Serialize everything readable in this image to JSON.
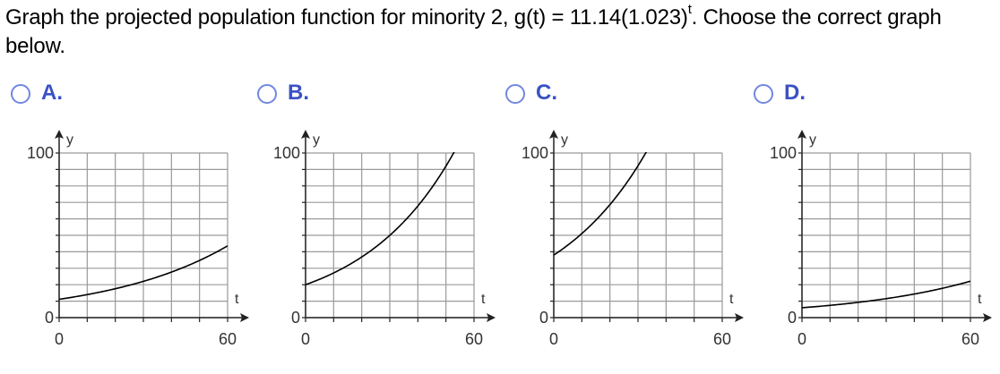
{
  "question": {
    "prefix": "Graph the projected population function for minority 2, g(t) = 11.14(1.023)",
    "exponent": "t",
    "suffix": ". Choose the correct graph below."
  },
  "options": [
    {
      "letter": "A.",
      "series": {
        "a": 11.14,
        "b": 1.023
      }
    },
    {
      "letter": "B.",
      "series": {
        "a": 20,
        "b": 1.031
      }
    },
    {
      "letter": "C.",
      "series": {
        "a": 38,
        "b": 1.03
      }
    },
    {
      "letter": "D.",
      "series": {
        "a": 6,
        "b": 1.022
      }
    }
  ],
  "graph": {
    "x_axis_label": "t",
    "y_axis_label": "y",
    "x_tick_min": "0",
    "x_tick_max": "60",
    "y_tick_min": "0",
    "y_tick_max": "100"
  },
  "chart_data": [
    {
      "type": "line",
      "xlim": [
        0,
        60
      ],
      "ylim": [
        0,
        100
      ],
      "grid": true,
      "x": [
        0,
        10,
        20,
        30,
        40,
        50,
        60
      ],
      "values": [
        11.1,
        14.0,
        17.6,
        22.0,
        27.6,
        34.7,
        43.5
      ]
    },
    {
      "type": "line",
      "xlim": [
        0,
        60
      ],
      "ylim": [
        0,
        100
      ],
      "grid": true,
      "x": [
        0,
        10,
        20,
        30,
        40,
        50,
        54
      ],
      "values": [
        20,
        27.2,
        37.0,
        50.3,
        68.5,
        93.1,
        104
      ]
    },
    {
      "type": "line",
      "xlim": [
        0,
        60
      ],
      "ylim": [
        0,
        100
      ],
      "grid": true,
      "x": [
        0,
        10,
        20,
        30,
        33
      ],
      "values": [
        38,
        51.1,
        68.6,
        92.2,
        100.8
      ]
    },
    {
      "type": "line",
      "xlim": [
        0,
        60
      ],
      "ylim": [
        0,
        100
      ],
      "grid": true,
      "x": [
        0,
        10,
        20,
        30,
        40,
        50,
        60
      ],
      "values": [
        6,
        7.5,
        9.3,
        11.6,
        14.3,
        17.8,
        22.1
      ]
    }
  ]
}
